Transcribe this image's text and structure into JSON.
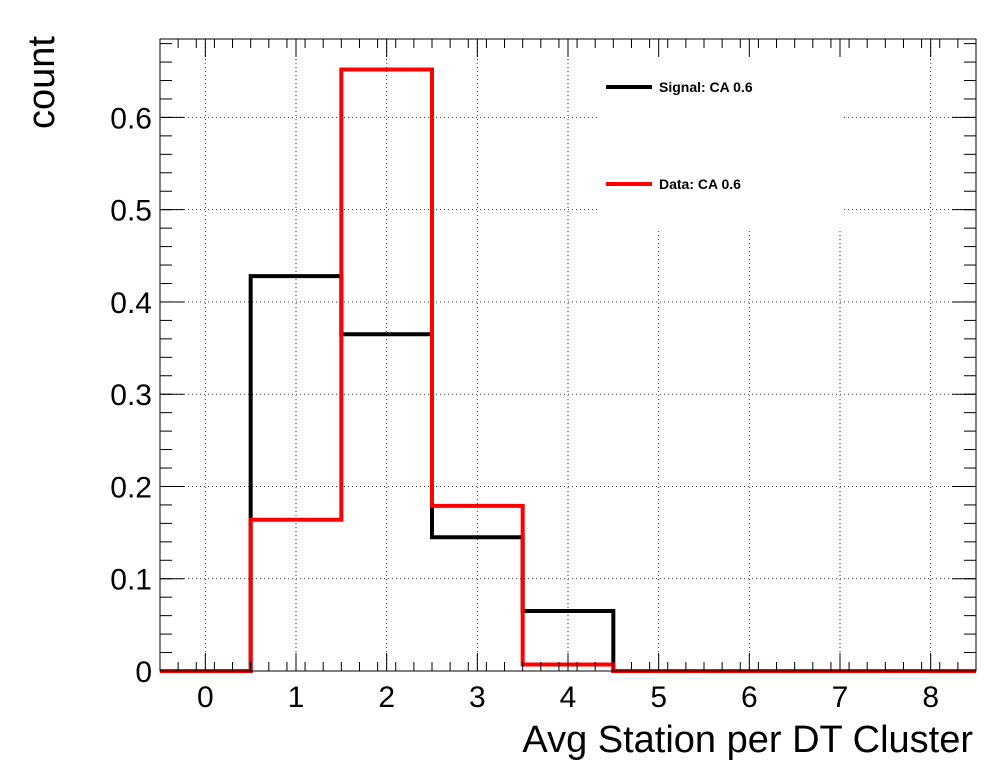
{
  "chart_data": {
    "type": "histogram",
    "xlabel": "Avg Station per DT Cluster",
    "ylabel": "count",
    "xlim": [
      -0.5,
      8.5
    ],
    "ylim": [
      0,
      0.685
    ],
    "grid": true,
    "x_ticks": [
      0,
      1,
      2,
      3,
      4,
      5,
      6,
      7,
      8
    ],
    "y_ticks": [
      0,
      0.1,
      0.2,
      0.3,
      0.4,
      0.5,
      0.6
    ],
    "y_tick_labels": [
      "0",
      "0.1",
      "0.2",
      "0.3",
      "0.4",
      "0.5",
      "0.6"
    ],
    "bin_edges": [
      -0.5,
      0.5,
      1.5,
      2.5,
      3.5,
      4.5,
      5.5,
      6.5,
      7.5,
      8.5
    ],
    "legend_position": "top-right",
    "series": [
      {
        "name": "Signal: CA 0.6",
        "color": "#000000",
        "values": [
          0,
          0.428,
          0.365,
          0.145,
          0.065,
          0,
          0,
          0,
          0
        ]
      },
      {
        "name": "Data: CA 0.6",
        "color": "#ff0000",
        "values": [
          0,
          0.164,
          0.652,
          0.179,
          0.007,
          0,
          0,
          0,
          0
        ]
      }
    ]
  }
}
